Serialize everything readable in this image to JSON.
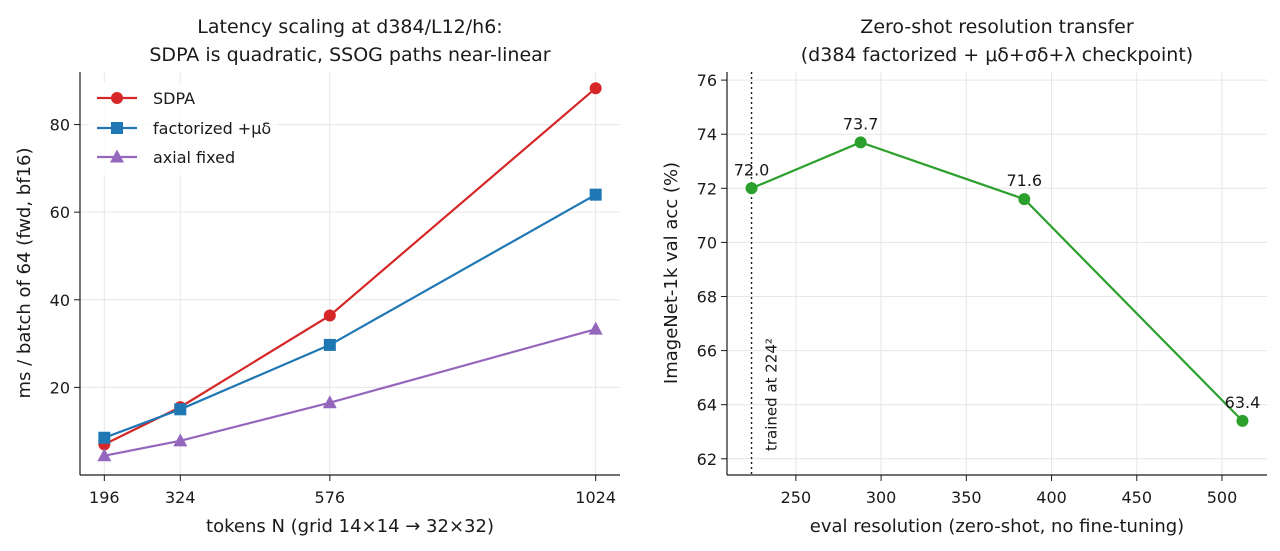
{
  "chart_data": [
    {
      "type": "line",
      "title_lines": [
        "Latency scaling at d384/L12/h6:",
        "SDPA is quadratic, SSOG paths near-linear"
      ],
      "xlabel": "tokens N (grid 14×14 → 32×32)",
      "ylabel": "ms / batch of 64 (fwd, bf16)",
      "x": [
        196,
        324,
        576,
        1024
      ],
      "xticks": [
        196,
        324,
        576,
        1024
      ],
      "xtick_labels": [
        "196",
        "324",
        "576",
        "1024"
      ],
      "yticks": [
        20,
        40,
        60,
        80
      ],
      "ytick_labels": [
        "20",
        "40",
        "60",
        "80"
      ],
      "xlim": [
        155,
        1065
      ],
      "ylim": [
        0,
        92
      ],
      "grid": true,
      "legend_position": "top-left",
      "series": [
        {
          "name": "SDPA",
          "color": "#d62728",
          "marker": "circle",
          "values": [
            7.0,
            15.5,
            36.4,
            88.3
          ]
        },
        {
          "name": "factorized +μδ",
          "color": "#1f77b4",
          "marker": "square",
          "values": [
            8.5,
            15.0,
            29.7,
            64.0
          ]
        },
        {
          "name": "axial fixed",
          "color": "#9467bd",
          "marker": "triangle",
          "values": [
            4.4,
            7.8,
            16.5,
            33.3
          ]
        }
      ]
    },
    {
      "type": "line",
      "title_lines": [
        "Zero-shot resolution transfer",
        "(d384 factorized + μδ+σδ+λ checkpoint)"
      ],
      "xlabel": "eval resolution (zero-shot, no fine-tuning)",
      "ylabel": "ImageNet-1k val acc (%)",
      "xticks": [
        250,
        300,
        350,
        400,
        450,
        500
      ],
      "xtick_labels": [
        "250",
        "300",
        "350",
        "400",
        "450",
        "500"
      ],
      "yticks": [
        62,
        64,
        66,
        68,
        70,
        72,
        74,
        76
      ],
      "ytick_labels": [
        "62",
        "64",
        "66",
        "68",
        "70",
        "72",
        "74",
        "76"
      ],
      "xlim": [
        209.6,
        526.4
      ],
      "ylim": [
        61.4,
        76.3
      ],
      "grid": true,
      "series": [
        {
          "color": "#2ca02c",
          "marker": "circle",
          "x": [
            224,
            288,
            384,
            512
          ],
          "values": [
            72.0,
            73.7,
            71.6,
            63.4
          ],
          "data_labels": [
            "72.0",
            "73.7",
            "71.6",
            "63.4"
          ]
        }
      ],
      "annotation": {
        "x": 224,
        "text": "trained at 224²",
        "style": "dotted-vertical-line"
      }
    }
  ]
}
